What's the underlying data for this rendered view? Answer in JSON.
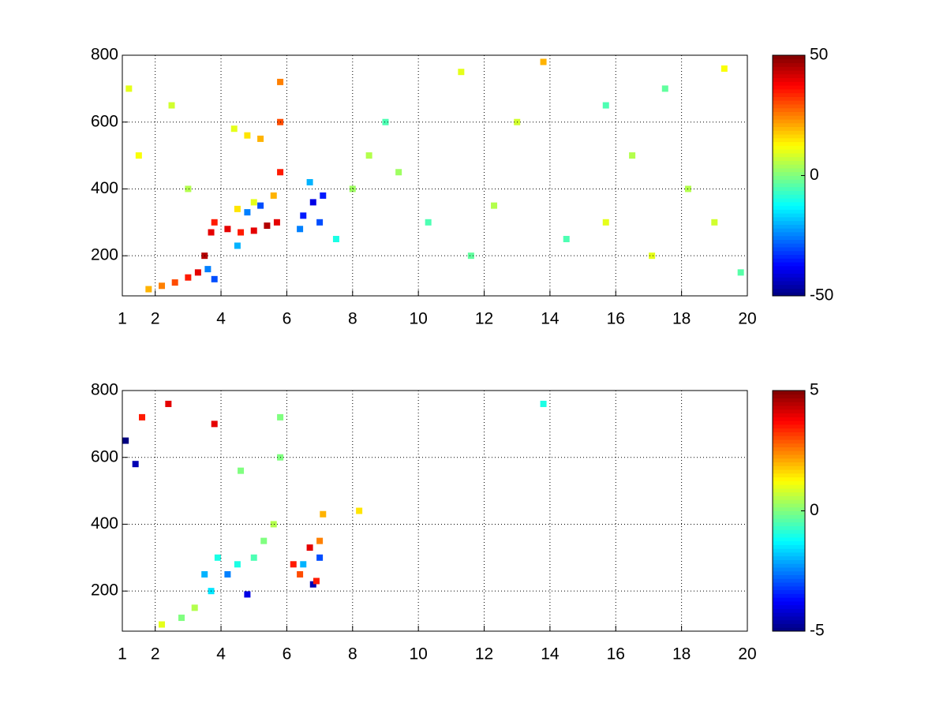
{
  "chart_data": [
    {
      "type": "heatmap",
      "colormap": "jet",
      "grid": true,
      "x": [
        1.8,
        2.2,
        2.6,
        3,
        3.3,
        3.5,
        3.7,
        3.8,
        4.2,
        4.6,
        5,
        5.4,
        5.7,
        5.8,
        5.8,
        5.8,
        5.6,
        3.8,
        3.6,
        4.5,
        4.8,
        5.2,
        6.5,
        6.8,
        7,
        6.7,
        7.1,
        6.4,
        4.8,
        5.2,
        4.4,
        4.5,
        5,
        1.2,
        1.5,
        2.5,
        3,
        8.5,
        9,
        9.4,
        10.3,
        11.3,
        11.6,
        12.3,
        13,
        13.8,
        14.5,
        15.7,
        15.7,
        16.5,
        17.1,
        17.5,
        18.2,
        19,
        19.3,
        19.8,
        7.5,
        8
      ],
      "y": [
        100,
        110,
        120,
        135,
        150,
        200,
        270,
        300,
        280,
        270,
        275,
        290,
        300,
        450,
        600,
        720,
        380,
        130,
        160,
        230,
        330,
        350,
        320,
        360,
        300,
        420,
        380,
        280,
        560,
        550,
        580,
        340,
        360,
        700,
        500,
        650,
        400,
        500,
        600,
        450,
        300,
        750,
        200,
        350,
        600,
        780,
        250,
        300,
        650,
        500,
        200,
        700,
        400,
        300,
        760,
        150,
        250,
        400
      ],
      "values": [
        20,
        25,
        30,
        35,
        40,
        45,
        40,
        35,
        40,
        35,
        40,
        45,
        40,
        35,
        30,
        25,
        20,
        -30,
        -25,
        -20,
        -25,
        -30,
        -35,
        -40,
        -30,
        -20,
        -35,
        -25,
        15,
        20,
        10,
        15,
        10,
        10,
        12,
        8,
        5,
        5,
        -5,
        3,
        -5,
        10,
        -3,
        5,
        8,
        20,
        -5,
        10,
        -5,
        5,
        10,
        -3,
        5,
        8,
        12,
        -4,
        -10,
        3
      ],
      "xlim": [
        1,
        20
      ],
      "xticks": [
        1,
        2,
        4,
        6,
        8,
        10,
        12,
        14,
        16,
        18,
        20
      ],
      "ylim": [
        80,
        800
      ],
      "yticks": [
        200,
        400,
        600,
        800
      ],
      "clim": [
        -50,
        50
      ],
      "cticks": [
        -50,
        0,
        50
      ]
    },
    {
      "type": "heatmap",
      "colormap": "jet",
      "grid": true,
      "x": [
        2.2,
        2.8,
        3.2,
        3.5,
        3.7,
        3.9,
        4.2,
        4.5,
        4.8,
        5,
        5.3,
        5.6,
        5.8,
        5.8,
        4.6,
        6.4,
        6.8,
        6.9,
        7,
        7.1,
        6.7,
        7,
        3.8,
        1.1,
        1.4,
        1.6,
        2.4,
        13.8,
        8.2,
        6.2,
        6.5
      ],
      "y": [
        100,
        120,
        150,
        250,
        200,
        300,
        250,
        280,
        190,
        300,
        350,
        400,
        600,
        720,
        560,
        250,
        220,
        230,
        350,
        430,
        330,
        300,
        700,
        650,
        580,
        720,
        760,
        760,
        440,
        280,
        280
      ],
      "values": [
        1,
        0,
        0.5,
        -2,
        -1.5,
        -1,
        -2.5,
        -1,
        -4,
        -0.5,
        0,
        0.5,
        0,
        0,
        0,
        3,
        -4.5,
        3.5,
        2.5,
        2,
        4,
        -3,
        4,
        -5,
        -4.5,
        3.5,
        4,
        -1,
        1.5,
        3.5,
        -2
      ],
      "xlim": [
        1,
        20
      ],
      "xticks": [
        1,
        2,
        4,
        6,
        8,
        10,
        12,
        14,
        16,
        18,
        20
      ],
      "ylim": [
        80,
        800
      ],
      "yticks": [
        200,
        400,
        600,
        800
      ],
      "clim": [
        -5,
        5
      ],
      "cticks": [
        -5,
        0,
        5
      ]
    }
  ]
}
